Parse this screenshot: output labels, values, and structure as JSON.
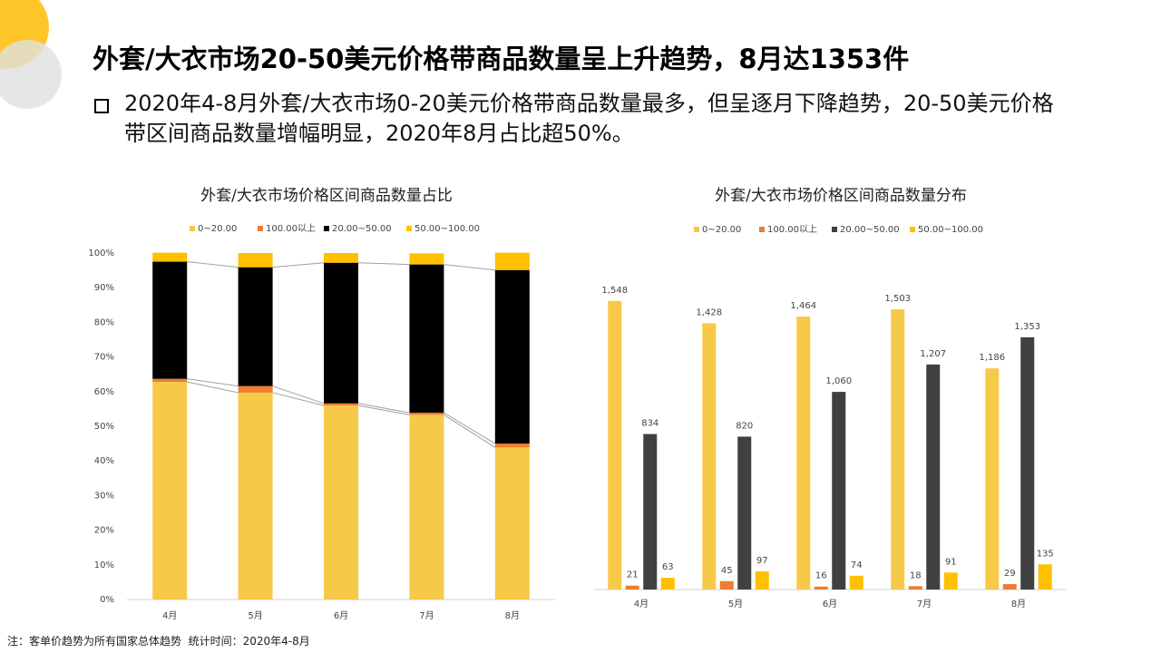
{
  "header": {
    "title": "外套/大衣市场20-50美元价格带商品数量呈上升趋势，8月达1353件",
    "bullet": "2020年4-8月外套/大衣市场0-20美元价格带商品数量最多，但呈逐月下降趋势，20-50美元价格带区间商品数量增幅明显，2020年8月占比超50%。"
  },
  "note": "注：客单价趋势为所有国家总体趋势  统计时间：2020年4-8月",
  "chart_data": [
    {
      "type": "stacked_bar",
      "title": "外套/大衣市场价格区间商品数量占比",
      "categories": [
        "4月",
        "5月",
        "6月",
        "7月",
        "8月"
      ],
      "series": [
        {
          "name": "0~20.00",
          "color": "#f7c948",
          "values": [
            62.8,
            59.7,
            56.0,
            53.3,
            43.9
          ]
        },
        {
          "name": "100.00以上",
          "color": "#ed7d31",
          "values": [
            0.9,
            1.9,
            0.6,
            0.6,
            1.1
          ]
        },
        {
          "name": "20.00~50.00",
          "color": "#000000",
          "values": [
            33.8,
            34.3,
            40.6,
            42.8,
            50.1
          ]
        },
        {
          "name": "50.00~100.00",
          "color": "#ffc000",
          "values": [
            2.6,
            4.1,
            2.8,
            3.2,
            5.0
          ]
        }
      ],
      "ylim": [
        0,
        100
      ],
      "yticks": [
        {
          "value": 0,
          "label": "0%"
        },
        {
          "value": 10,
          "label": "10%"
        },
        {
          "value": 20,
          "label": "20%"
        },
        {
          "value": 30,
          "label": "30%"
        },
        {
          "value": 40,
          "label": "40%"
        },
        {
          "value": 50,
          "label": "50%"
        },
        {
          "value": 60,
          "label": "60%"
        },
        {
          "value": 70,
          "label": "70%"
        },
        {
          "value": 80,
          "label": "80%"
        },
        {
          "value": 90,
          "label": "90%"
        },
        {
          "value": 100,
          "label": "100%"
        }
      ]
    },
    {
      "type": "bar",
      "title": "外套/大衣市场价格区间商品数量分布",
      "categories": [
        "4月",
        "5月",
        "6月",
        "7月",
        "8月"
      ],
      "series": [
        {
          "name": "0~20.00",
          "color": "#f7c948",
          "values": [
            1548,
            1428,
            1464,
            1503,
            1186
          ],
          "value_labels": [
            "1,548",
            "1,428",
            "1,464",
            "1,503",
            "1,186"
          ]
        },
        {
          "name": "100.00以上",
          "color": "#ed7d31",
          "values": [
            21,
            45,
            16,
            18,
            29
          ]
        },
        {
          "name": "20.00~50.00",
          "color": "#404040",
          "values": [
            834,
            820,
            1060,
            1207,
            1353
          ],
          "value_labels": [
            "834",
            "820",
            "1,060",
            "1,207",
            "1,353"
          ]
        },
        {
          "name": "50.00~100.00",
          "color": "#ffc000",
          "values": [
            63,
            97,
            74,
            91,
            135
          ]
        }
      ],
      "ylim": [
        0,
        1800
      ]
    }
  ]
}
